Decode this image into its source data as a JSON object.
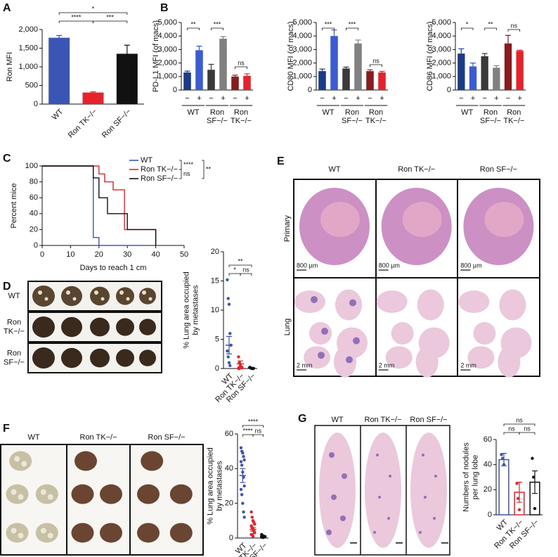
{
  "panels": [
    "A",
    "B",
    "C",
    "D",
    "E",
    "F",
    "G"
  ],
  "images": {
    "D": {
      "rows": [
        [
          "WT"
        ],
        [
          "Ron",
          "TK−/−"
        ],
        [
          "Ron",
          "SF−/−"
        ]
      ]
    },
    "E": {
      "columns": [
        "WT",
        "Ron TK−/−",
        "Ron SF−/−"
      ],
      "rows": [
        "Primary",
        "Lung"
      ],
      "scale_bars": [
        "800 µm",
        "800 µm",
        "800 µm",
        "2 mm",
        "2 mm",
        "2 mm"
      ]
    },
    "F": {
      "columns": [
        "WT",
        "Ron TK−/−",
        "Ron SF−/−"
      ]
    },
    "G": {
      "columns": [
        "WT",
        "Ron TK−/−",
        "Ron SF−/−"
      ]
    }
  },
  "chart_data": [
    {
      "type": "bar",
      "ylabel": [
        "Ron MFI"
      ],
      "categories": [
        "WT",
        "Ron TK−/−",
        "Ron SF−/−"
      ],
      "values": [
        1780,
        310,
        1350
      ],
      "errors": [
        60,
        20,
        230
      ],
      "colors": [
        "#3a55b4",
        "#e8222a",
        "#111111"
      ],
      "ylim": [
        0,
        2000
      ],
      "yticks": [
        0,
        500,
        {
          "value": 1000,
          "label": "1,000"
        },
        {
          "value": 1500,
          "label": "1,500"
        },
        {
          "value": 2000,
          "label": "2,000"
        }
      ],
      "annotations": [
        "*",
        "****",
        "***"
      ]
    },
    {
      "type": "bar",
      "ylabel": [
        "PD-L1 MFI (of macs)"
      ],
      "categories": [
        "−",
        "+",
        "−",
        "+",
        "−",
        "+"
      ],
      "groups": [
        [
          "WT"
        ],
        [
          "Ron",
          "SF−/−"
        ],
        [
          "Ron",
          "TK−/−"
        ]
      ],
      "values": [
        1300,
        2950,
        1500,
        3800,
        1000,
        1050
      ],
      "errors": [
        100,
        300,
        400,
        150,
        100,
        150
      ],
      "colors": [
        "#1a3a8a",
        "#3b5bd6",
        "#3a3a3a",
        "#808080",
        "#8b1c1c",
        "#e8222a"
      ],
      "ylim": [
        0,
        5000
      ],
      "yticks": [
        0,
        {
          "value": 1000,
          "label": "1,000"
        },
        {
          "value": 2000,
          "label": "2,000"
        },
        {
          "value": 3000,
          "label": "3,000"
        },
        {
          "value": 4000,
          "label": "4,000"
        },
        {
          "value": 5000,
          "label": "5,000"
        }
      ],
      "annotations": [
        "**",
        "***",
        "ns"
      ]
    },
    {
      "type": "bar",
      "ylabel": [
        "CD80 MFI (of macs)"
      ],
      "categories": [
        "−",
        "+",
        "−",
        "+",
        "−",
        "+"
      ],
      "groups": [
        [
          "WT"
        ],
        [
          "Ron",
          "SF−/−"
        ],
        [
          "Ron",
          "TK−/−"
        ]
      ],
      "values": [
        1400,
        4000,
        1600,
        3450,
        1400,
        1300
      ],
      "errors": [
        150,
        450,
        100,
        250,
        100,
        80
      ],
      "colors": [
        "#1a3a8a",
        "#3b5bd6",
        "#3a3a3a",
        "#808080",
        "#8b1c1c",
        "#e8222a"
      ],
      "ylim": [
        0,
        5000
      ],
      "yticks": [
        0,
        {
          "value": 1000,
          "label": "1,000"
        },
        {
          "value": 2000,
          "label": "2,000"
        },
        {
          "value": 3000,
          "label": "3,000"
        },
        {
          "value": 4000,
          "label": "4,000"
        },
        {
          "value": 5000,
          "label": "5,000"
        }
      ],
      "annotations": [
        "***",
        "***",
        "ns"
      ]
    },
    {
      "type": "bar",
      "ylabel": [
        "CD86 MFI (of macs)"
      ],
      "categories": [
        "−",
        "+",
        "−",
        "+",
        "−",
        "+"
      ],
      "groups": [
        [
          "WT"
        ],
        [
          "Ron",
          "SF−/−"
        ],
        [
          "Ron",
          "TK−/−"
        ]
      ],
      "values": [
        2700,
        1750,
        2500,
        1650,
        3450,
        2900
      ],
      "errors": [
        350,
        250,
        200,
        150,
        600,
        50
      ],
      "colors": [
        "#1a3a8a",
        "#3b5bd6",
        "#3a3a3a",
        "#808080",
        "#8b1c1c",
        "#e8222a"
      ],
      "ylim": [
        0,
        5000
      ],
      "yticks": [
        0,
        {
          "value": 1000,
          "label": "1,000"
        },
        {
          "value": 2000,
          "label": "2,000"
        },
        {
          "value": 3000,
          "label": "3,000"
        },
        {
          "value": 4000,
          "label": "4,000"
        },
        {
          "value": 5000,
          "label": "5,000"
        }
      ],
      "annotations": [
        "*",
        "**",
        "ns"
      ]
    },
    {
      "type": "line",
      "xlabel": "Days to reach 1 cm",
      "ylabel": [
        "Percent mice"
      ],
      "series": [
        {
          "name": "WT",
          "color": "#3a55d0",
          "x": [
            0,
            18,
            18,
            20,
            20,
            35
          ],
          "values": [
            100,
            100,
            10,
            10,
            0,
            0
          ]
        },
        {
          "name": "Ron TK−/−",
          "color": "#e8222a",
          "x": [
            0,
            20,
            20,
            22,
            22,
            25,
            25,
            29,
            29,
            40,
            40
          ],
          "values": [
            100,
            100,
            90,
            90,
            80,
            80,
            70,
            70,
            20,
            20,
            0
          ]
        },
        {
          "name": "Ron SF−/−",
          "color": "#111111",
          "x": [
            0,
            18,
            18,
            20,
            20,
            23,
            23,
            30,
            30,
            40,
            40
          ],
          "values": [
            100,
            100,
            85,
            85,
            60,
            60,
            40,
            40,
            20,
            20,
            0
          ]
        }
      ],
      "xlim": [
        0,
        50
      ],
      "xticks": [
        0,
        10,
        20,
        30,
        40,
        50
      ],
      "ylim": [
        0,
        100
      ],
      "yticks": [
        0,
        20,
        40,
        60,
        80,
        100
      ],
      "annotations": [
        "****",
        "ns",
        "**"
      ]
    },
    {
      "type": "dotplot",
      "ylabel": [
        "% Lung area occupied",
        "by metastases"
      ],
      "categories": [
        "WT",
        "Ron TK−/−",
        "Ron SF−/−"
      ],
      "values": [
        4,
        0.8,
        0.1
      ],
      "errors": [
        1.5,
        0.5,
        0.1
      ],
      "points": [
        [
          15.2,
          12,
          11,
          6,
          4,
          3,
          2,
          1,
          0.5
        ],
        [
          2,
          1,
          0.5,
          0.3,
          0.1,
          0,
          0
        ],
        [
          0.2,
          0.1,
          0,
          0,
          0
        ]
      ],
      "colors": [
        "#3a55b4",
        "#e8222a",
        "#111111"
      ],
      "ylim": [
        0,
        20
      ],
      "yticks": [
        0,
        5,
        10,
        15,
        20
      ],
      "annotations": [
        "**",
        "*",
        "ns"
      ]
    },
    {
      "type": "dotplot",
      "ylabel": [
        "% Lung area occupied",
        "by metastases"
      ],
      "categories": [
        "WT",
        "Ron TK−/−",
        "Ron SF−/−"
      ],
      "values": [
        36,
        5,
        1
      ],
      "errors": [
        4,
        1,
        0.3
      ],
      "points": [
        [
          52,
          50,
          49,
          47,
          45,
          44,
          42,
          38,
          35,
          30,
          28,
          25,
          20,
          15,
          12
        ],
        [
          15,
          12,
          10,
          9,
          8,
          7,
          6,
          5,
          4,
          3,
          2,
          2,
          1
        ],
        [
          2,
          1.5,
          1,
          1,
          0.8,
          0.5,
          0.5,
          0.3
        ]
      ],
      "colors": [
        "#3a55b4",
        "#e8222a",
        "#111111"
      ],
      "ylim": [
        0,
        60
      ],
      "yticks": [
        0,
        20,
        40,
        60
      ],
      "annotations": [
        "****",
        "****",
        "ns"
      ]
    },
    {
      "type": "bar",
      "bar_fill": "none",
      "ylabel": [
        "Numbers of nodules",
        "per lung lobe"
      ],
      "categories": [
        "WT",
        "Ron TK−/−",
        "Ron SF−/−"
      ],
      "values": [
        44,
        18,
        26
      ],
      "errors": [
        5,
        8,
        9
      ],
      "points": [
        [
          48,
          45,
          40
        ],
        [
          25,
          13,
          4
        ],
        [
          45,
          30,
          5
        ]
      ],
      "colors": [
        "#3a55b4",
        "#e8222a",
        "#111111"
      ],
      "ylim": [
        0,
        60
      ],
      "yticks": [
        0,
        20,
        40,
        60
      ],
      "annotations": [
        "ns",
        "ns",
        "ns"
      ]
    }
  ]
}
